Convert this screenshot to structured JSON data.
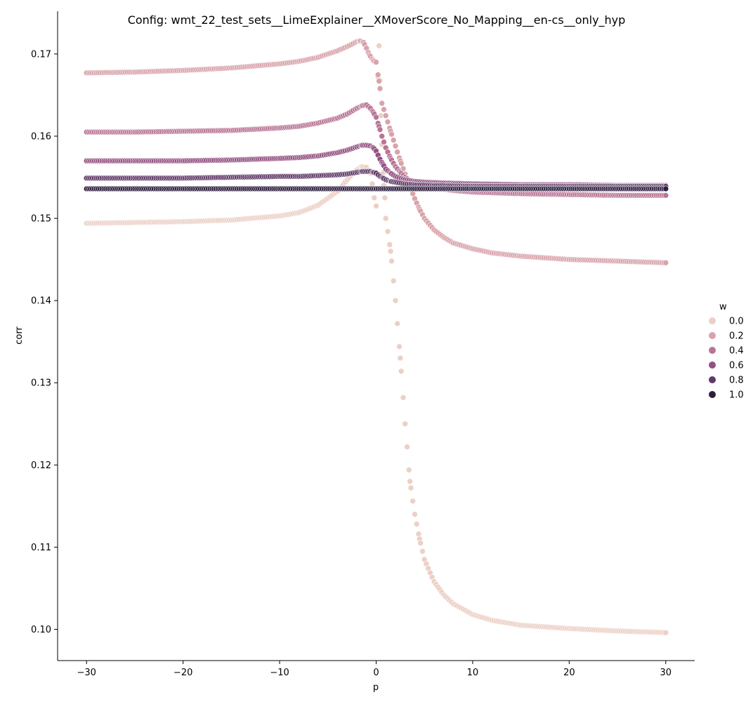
{
  "chart_data": {
    "type": "scatter",
    "title": "Config: wmt_22_test_sets__LimeExplainer__XMoverScore_No_Mapping__en-cs__only_hyp",
    "xlabel": "p",
    "ylabel": "corr",
    "xlim": [
      -33,
      33
    ],
    "ylim": [
      0.0962,
      0.1752
    ],
    "x_ticks": [
      -30,
      -20,
      -10,
      0,
      10,
      20,
      30
    ],
    "x_tick_labels": [
      "−30",
      "−20",
      "−10",
      "0",
      "10",
      "20",
      "30"
    ],
    "y_ticks": [
      0.1,
      0.11,
      0.12,
      0.13,
      0.14,
      0.15,
      0.16,
      0.17
    ],
    "y_tick_labels": [
      "0.10",
      "0.11",
      "0.12",
      "0.13",
      "0.14",
      "0.15",
      "0.16",
      "0.17"
    ],
    "grid": false,
    "legend": {
      "title": "w",
      "placement": "right",
      "entries": [
        {
          "label": "0.0",
          "color": "#ecd0c6"
        },
        {
          "label": "0.2",
          "color": "#d8a3aa"
        },
        {
          "label": "0.4",
          "color": "#b97596"
        },
        {
          "label": "0.6",
          "color": "#945182"
        },
        {
          "label": "0.8",
          "color": "#603a67"
        },
        {
          "label": "1.0",
          "color": "#2d1e3e"
        }
      ]
    },
    "series": [
      {
        "w": 0.0,
        "color": "#ecd0c6",
        "points": [
          [
            -30,
            0.1494
          ],
          [
            -25,
            0.1495
          ],
          [
            -20,
            0.1496
          ],
          [
            -15,
            0.1498
          ],
          [
            -10,
            0.1503
          ],
          [
            -8,
            0.1507
          ],
          [
            -6,
            0.1516
          ],
          [
            -4,
            0.1533
          ],
          [
            -3,
            0.1547
          ],
          [
            -2,
            0.1559
          ],
          [
            -1.5,
            0.1563
          ],
          [
            -1,
            0.1562
          ],
          [
            -0.6,
            0.1555
          ],
          [
            -0.4,
            0.1542
          ],
          [
            -0.2,
            0.1525
          ],
          [
            0,
            0.1515
          ],
          [
            0.2,
            0.1672
          ],
          [
            0.3,
            0.171
          ],
          [
            0.5,
            0.1625
          ],
          [
            0.7,
            0.1555
          ],
          [
            0.9,
            0.1525
          ],
          [
            1,
            0.15
          ],
          [
            1.5,
            0.146
          ],
          [
            2,
            0.14
          ],
          [
            2.5,
            0.133
          ],
          [
            3,
            0.125
          ],
          [
            3.5,
            0.118
          ],
          [
            4,
            0.114
          ],
          [
            4.5,
            0.111
          ],
          [
            5,
            0.1085
          ],
          [
            6,
            0.1058
          ],
          [
            7,
            0.1042
          ],
          [
            8,
            0.1031
          ],
          [
            10,
            0.1018
          ],
          [
            12,
            0.1011
          ],
          [
            15,
            0.1005
          ],
          [
            20,
            0.1001
          ],
          [
            25,
            0.0998
          ],
          [
            30,
            0.0996
          ]
        ]
      },
      {
        "w": 0.2,
        "color": "#d8a3aa",
        "points": [
          [
            -30,
            0.1677
          ],
          [
            -25,
            0.1678
          ],
          [
            -20,
            0.168
          ],
          [
            -15,
            0.1683
          ],
          [
            -10,
            0.1688
          ],
          [
            -8,
            0.1691
          ],
          [
            -6,
            0.1696
          ],
          [
            -4,
            0.1704
          ],
          [
            -3,
            0.1709
          ],
          [
            -2,
            0.1715
          ],
          [
            -1.7,
            0.1716
          ],
          [
            -1.3,
            0.1714
          ],
          [
            -1,
            0.1707
          ],
          [
            -0.7,
            0.1699
          ],
          [
            -0.3,
            0.1692
          ],
          [
            0,
            0.169
          ],
          [
            0.3,
            0.1667
          ],
          [
            0.6,
            0.164
          ],
          [
            1,
            0.1625
          ],
          [
            1.5,
            0.1606
          ],
          [
            2,
            0.1588
          ],
          [
            2.5,
            0.157
          ],
          [
            3,
            0.1554
          ],
          [
            3.5,
            0.1539
          ],
          [
            4,
            0.1524
          ],
          [
            4.5,
            0.1511
          ],
          [
            5,
            0.15
          ],
          [
            6,
            0.1486
          ],
          [
            7,
            0.1477
          ],
          [
            8,
            0.147
          ],
          [
            10,
            0.1463
          ],
          [
            12,
            0.1458
          ],
          [
            15,
            0.1454
          ],
          [
            20,
            0.145
          ],
          [
            25,
            0.1448
          ],
          [
            30,
            0.1446
          ]
        ]
      },
      {
        "w": 0.4,
        "color": "#b97596",
        "points": [
          [
            -30,
            0.1605
          ],
          [
            -25,
            0.1605
          ],
          [
            -20,
            0.1606
          ],
          [
            -15,
            0.1607
          ],
          [
            -10,
            0.161
          ],
          [
            -8,
            0.1612
          ],
          [
            -6,
            0.1616
          ],
          [
            -4,
            0.1622
          ],
          [
            -3,
            0.1627
          ],
          [
            -2,
            0.1634
          ],
          [
            -1.5,
            0.1637
          ],
          [
            -1,
            0.1638
          ],
          [
            -0.6,
            0.1634
          ],
          [
            -0.3,
            0.1629
          ],
          [
            0,
            0.1623
          ],
          [
            0.3,
            0.1612
          ],
          [
            0.6,
            0.16
          ],
          [
            1,
            0.1586
          ],
          [
            1.5,
            0.1573
          ],
          [
            2,
            0.1563
          ],
          [
            2.5,
            0.1556
          ],
          [
            3,
            0.155
          ],
          [
            3.5,
            0.1546
          ],
          [
            4,
            0.1543
          ],
          [
            5,
            0.1539
          ],
          [
            6,
            0.1537
          ],
          [
            8,
            0.1534
          ],
          [
            10,
            0.1532
          ],
          [
            15,
            0.153
          ],
          [
            20,
            0.1529
          ],
          [
            25,
            0.1528
          ],
          [
            30,
            0.1528
          ]
        ]
      },
      {
        "w": 0.6,
        "color": "#945182",
        "points": [
          [
            -30,
            0.157
          ],
          [
            -25,
            0.157
          ],
          [
            -20,
            0.157
          ],
          [
            -15,
            0.1571
          ],
          [
            -10,
            0.1573
          ],
          [
            -8,
            0.1574
          ],
          [
            -6,
            0.1576
          ],
          [
            -4,
            0.158
          ],
          [
            -3,
            0.1583
          ],
          [
            -2,
            0.1587
          ],
          [
            -1.5,
            0.1589
          ],
          [
            -1,
            0.1589
          ],
          [
            -0.6,
            0.1588
          ],
          [
            -0.3,
            0.1586
          ],
          [
            0,
            0.1582
          ],
          [
            0.2,
            0.1577
          ],
          [
            0.4,
            0.1572
          ],
          [
            0.7,
            0.1566
          ],
          [
            1,
            0.156
          ],
          [
            1.5,
            0.1555
          ],
          [
            2,
            0.1551
          ],
          [
            3,
            0.1547
          ],
          [
            4,
            0.1545
          ],
          [
            5,
            0.1544
          ],
          [
            7,
            0.1543
          ],
          [
            10,
            0.1542
          ],
          [
            15,
            0.1541
          ],
          [
            20,
            0.1541
          ],
          [
            25,
            0.154
          ],
          [
            30,
            0.154
          ]
        ]
      },
      {
        "w": 0.8,
        "color": "#603a67",
        "points": [
          [
            -30,
            0.1549
          ],
          [
            -25,
            0.1549
          ],
          [
            -20,
            0.1549
          ],
          [
            -15,
            0.155
          ],
          [
            -10,
            0.1551
          ],
          [
            -8,
            0.1551
          ],
          [
            -6,
            0.1552
          ],
          [
            -4,
            0.1553
          ],
          [
            -3,
            0.1554
          ],
          [
            -2,
            0.1556
          ],
          [
            -1.5,
            0.1557
          ],
          [
            -1,
            0.1557
          ],
          [
            -0.6,
            0.1557
          ],
          [
            -0.3,
            0.1556
          ],
          [
            0,
            0.1555
          ],
          [
            0.2,
            0.1553
          ],
          [
            0.4,
            0.1551
          ],
          [
            0.7,
            0.1549
          ],
          [
            1,
            0.1547
          ],
          [
            1.5,
            0.1545
          ],
          [
            2,
            0.1544
          ],
          [
            3,
            0.1542
          ],
          [
            4,
            0.1541
          ],
          [
            6,
            0.154
          ],
          [
            10,
            0.1539
          ],
          [
            15,
            0.1539
          ],
          [
            20,
            0.1539
          ],
          [
            25,
            0.1539
          ],
          [
            30,
            0.1539
          ]
        ]
      },
      {
        "w": 1.0,
        "color": "#2d1e3e",
        "points": [
          [
            -30,
            0.1536
          ],
          [
            -20,
            0.1536
          ],
          [
            -10,
            0.1536
          ],
          [
            0,
            0.1536
          ],
          [
            10,
            0.1536
          ],
          [
            20,
            0.1536
          ],
          [
            30,
            0.1536
          ]
        ]
      }
    ]
  }
}
